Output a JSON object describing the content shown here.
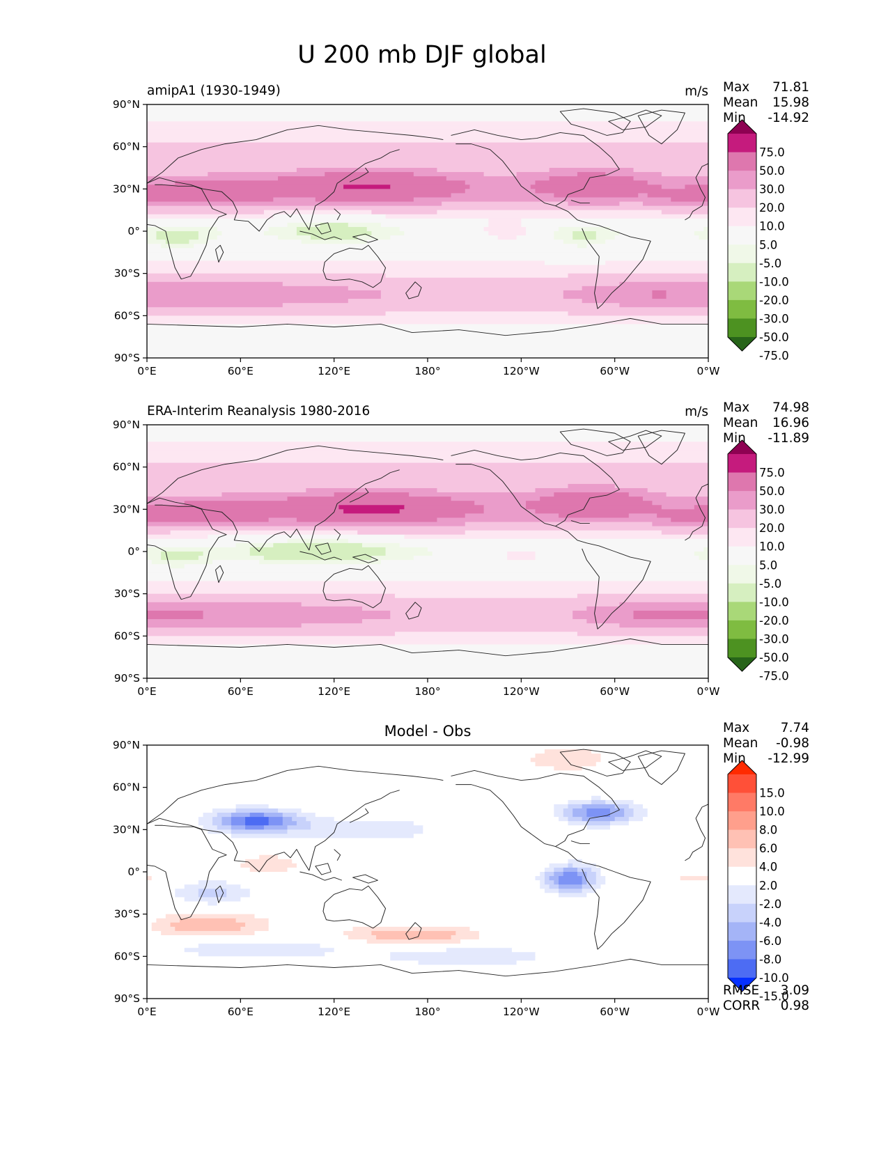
{
  "figure": {
    "title": "U 200 mb DJF global"
  },
  "colors": {
    "main": [
      "#276419",
      "#4d9221",
      "#7fbc41",
      "#a9d878",
      "#d6efc0",
      "#f0f8e8",
      "#f7f7f7",
      "#fde7f2",
      "#f6c4e0",
      "#ea9cca",
      "#de77ae",
      "#c51b7d",
      "#8e0152"
    ],
    "diff": [
      "#0530ff",
      "#4d6cf3",
      "#7d93f5",
      "#a4b4f7",
      "#c8d2fb",
      "#e4e9fd",
      "#ffffff",
      "#ffe2dc",
      "#ffc1b4",
      "#ff9f8c",
      "#ff7a66",
      "#ff5038",
      "#ff2a00"
    ]
  },
  "panels": [
    {
      "id": "model",
      "subtitle": "amipA1 (1930-1949)",
      "units": "m/s",
      "stats": [
        {
          "label": "Max",
          "value": "71.81"
        },
        {
          "label": "Mean",
          "value": "15.98"
        },
        {
          "label": "Min",
          "value": "-14.92"
        }
      ],
      "colorbar_labels": [
        "75.0",
        "50.0",
        "30.0",
        "20.0",
        "10.0",
        "5.0",
        "-5.0",
        "-10.0",
        "-20.0",
        "-30.0",
        "-50.0",
        "-75.0"
      ]
    },
    {
      "id": "obs",
      "subtitle": "ERA-Interim Reanalysis 1980-2016",
      "units": "m/s",
      "stats": [
        {
          "label": "Max",
          "value": "74.98"
        },
        {
          "label": "Mean",
          "value": "16.96"
        },
        {
          "label": "Min",
          "value": "-11.89"
        }
      ],
      "colorbar_labels": [
        "75.0",
        "50.0",
        "30.0",
        "20.0",
        "10.0",
        "5.0",
        "-5.0",
        "-10.0",
        "-20.0",
        "-30.0",
        "-50.0",
        "-75.0"
      ]
    },
    {
      "id": "diff",
      "title": "Model - Obs",
      "stats": [
        {
          "label": "Max",
          "value": "7.74"
        },
        {
          "label": "Mean",
          "value": "-0.98"
        },
        {
          "label": "Min",
          "value": "-12.99"
        }
      ],
      "colorbar_labels": [
        "15.0",
        "10.0",
        "8.0",
        "6.0",
        "4.0",
        "2.0",
        "-2.0",
        "-4.0",
        "-6.0",
        "-8.0",
        "-10.0",
        "-15.0"
      ],
      "metrics": [
        {
          "label": "RMSE",
          "value": "3.09"
        },
        {
          "label": "CORR",
          "value": "0.98"
        }
      ]
    }
  ],
  "chart_data": {
    "type": "heatmap",
    "title": "U 200 mb DJF global",
    "variable": "U 200 mb",
    "season": "DJF",
    "region": "global",
    "x_ticks": [
      {
        "lon": 0,
        "label": "0°E"
      },
      {
        "lon": 60,
        "label": "60°E"
      },
      {
        "lon": 120,
        "label": "120°E"
      },
      {
        "lon": 180,
        "label": "180°"
      },
      {
        "lon": 240,
        "label": "120°W"
      },
      {
        "lon": 300,
        "label": "60°W"
      },
      {
        "lon": 360,
        "label": "0°W"
      }
    ],
    "y_ticks": [
      {
        "lat": 90,
        "label": "90°N"
      },
      {
        "lat": 60,
        "label": "60°N"
      },
      {
        "lat": 30,
        "label": "30°N"
      },
      {
        "lat": 0,
        "label": "0°"
      },
      {
        "lat": -30,
        "label": "30°S"
      },
      {
        "lat": -60,
        "label": "60°S"
      },
      {
        "lat": -90,
        "label": "90°S"
      }
    ],
    "xlim": [
      0,
      360
    ],
    "ylim": [
      -90,
      90
    ],
    "levels_main": [
      -75,
      -50,
      -30,
      -20,
      -10,
      -5,
      5,
      10,
      20,
      30,
      50,
      75
    ],
    "levels_diff": [
      -15,
      -10,
      -8,
      -6,
      -4,
      -2,
      2,
      4,
      6,
      8,
      10,
      15
    ],
    "fields": {
      "model": [
        {
          "lon": 142,
          "lat": 32,
          "dlon": 40,
          "dlat": 8,
          "a": 30
        },
        {
          "lon": 45,
          "lat": 28,
          "dlon": 28,
          "dlat": 6,
          "a": 25
        },
        {
          "lon": 285,
          "lat": 33,
          "dlon": 26,
          "dlat": 8,
          "a": 22
        },
        {
          "lon": 350,
          "lat": 24,
          "dlon": 18,
          "dlat": 5,
          "a": 14
        },
        {
          "lon": 55,
          "lat": -45,
          "dlon": 55,
          "dlat": 8,
          "a": 10
        },
        {
          "lon": 320,
          "lat": -45,
          "dlon": 30,
          "dlat": 7,
          "a": 10
        },
        {
          "lon": 230,
          "lat": 0,
          "dlon": 15,
          "dlat": 5,
          "a": 12
        },
        {
          "lon": 20,
          "lat": -5,
          "dlon": 15,
          "dlat": 6,
          "a": -12
        },
        {
          "lon": 120,
          "lat": 0,
          "dlon": 22,
          "dlat": 7,
          "a": -12
        },
        {
          "lon": 280,
          "lat": -5,
          "dlon": 12,
          "dlat": 6,
          "a": -10
        }
      ],
      "obs": [
        {
          "lon": 145,
          "lat": 31,
          "dlon": 42,
          "dlat": 8,
          "a": 32
        },
        {
          "lon": 45,
          "lat": 28,
          "dlon": 28,
          "dlat": 6,
          "a": 20
        },
        {
          "lon": 285,
          "lat": 35,
          "dlon": 26,
          "dlat": 8,
          "a": 25
        },
        {
          "lon": 350,
          "lat": 24,
          "dlon": 18,
          "dlat": 5,
          "a": 14
        },
        {
          "lon": 55,
          "lat": -45,
          "dlon": 55,
          "dlat": 8,
          "a": 12
        },
        {
          "lon": 330,
          "lat": -45,
          "dlon": 30,
          "dlat": 7,
          "a": 12
        },
        {
          "lon": 240,
          "lat": -2,
          "dlon": 15,
          "dlat": 5,
          "a": 10
        },
        {
          "lon": 20,
          "lat": -5,
          "dlon": 15,
          "dlat": 6,
          "a": -10
        },
        {
          "lon": 110,
          "lat": 0,
          "dlon": 35,
          "dlat": 7,
          "a": -15
        }
      ],
      "diff": [
        {
          "lon": 70,
          "lat": 36,
          "dlon": 20,
          "dlat": 6,
          "a": -11
        },
        {
          "lon": 290,
          "lat": 42,
          "dlon": 18,
          "dlat": 6,
          "a": -9
        },
        {
          "lon": 270,
          "lat": -5,
          "dlon": 12,
          "dlat": 7,
          "a": -10
        },
        {
          "lon": 140,
          "lat": 30,
          "dlon": 30,
          "dlat": 6,
          "a": -4
        },
        {
          "lon": 40,
          "lat": -38,
          "dlon": 25,
          "dlat": 6,
          "a": 6
        },
        {
          "lon": 170,
          "lat": -45,
          "dlon": 30,
          "dlat": 5,
          "a": 6
        },
        {
          "lon": 40,
          "lat": -15,
          "dlon": 25,
          "dlat": 6,
          "a": -4
        },
        {
          "lon": 70,
          "lat": -55,
          "dlon": 40,
          "dlat": 5,
          "a": -4
        },
        {
          "lon": 205,
          "lat": -60,
          "dlon": 40,
          "dlat": 5,
          "a": -4
        },
        {
          "lon": 270,
          "lat": 80,
          "dlon": 25,
          "dlat": 8,
          "a": 3
        },
        {
          "lon": 80,
          "lat": 5,
          "dlon": 20,
          "dlat": 5,
          "a": 3
        },
        {
          "lon": 350,
          "lat": -5,
          "dlon": 15,
          "dlat": 5,
          "a": 3
        }
      ]
    }
  }
}
